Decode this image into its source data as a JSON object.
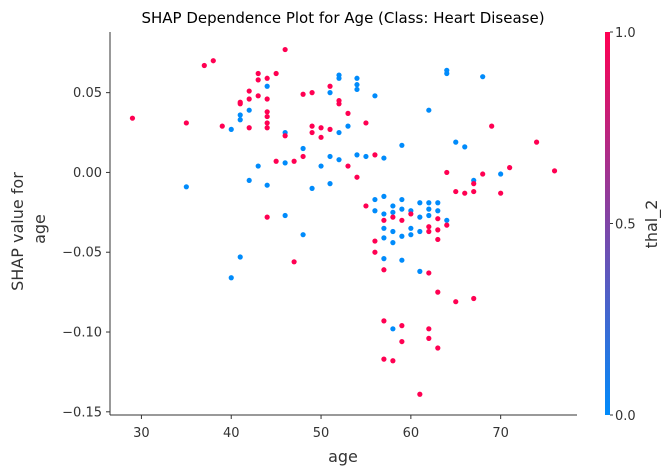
{
  "chart_data": {
    "type": "scatter",
    "title": "SHAP Dependence Plot for Age (Class: Heart Disease)",
    "xlabel": "age",
    "ylabel": [
      "SHAP value for",
      "age"
    ],
    "xlim": [
      26.5,
      78.5
    ],
    "ylim": [
      -0.152,
      0.088
    ],
    "xticks": [
      30,
      40,
      50,
      60,
      70
    ],
    "xtick_labels": [
      "30",
      "40",
      "50",
      "60",
      "70"
    ],
    "yticks": [
      -0.15,
      -0.1,
      -0.05,
      0.0,
      0.05
    ],
    "ytick_labels": [
      "−0.15",
      "−0.10",
      "−0.05",
      "0.00",
      "0.05"
    ],
    "colorbar": {
      "label": "thal_2",
      "ticks": [
        0.0,
        0.5,
        1.0
      ],
      "tick_labels": [
        "0.0",
        "0.5",
        "1.0"
      ],
      "low_color": "#008bfb",
      "high_color": "#ff0052"
    },
    "grid": false,
    "points": [
      {
        "x": 29,
        "y": 0.034,
        "c": 1
      },
      {
        "x": 35,
        "y": 0.031,
        "c": 1
      },
      {
        "x": 35,
        "y": -0.009,
        "c": 0
      },
      {
        "x": 37,
        "y": 0.067,
        "c": 1
      },
      {
        "x": 38,
        "y": 0.07,
        "c": 1
      },
      {
        "x": 39,
        "y": 0.029,
        "c": 1
      },
      {
        "x": 40,
        "y": 0.027,
        "c": 0
      },
      {
        "x": 40,
        "y": -0.066,
        "c": 0
      },
      {
        "x": 41,
        "y": 0.044,
        "c": 1
      },
      {
        "x": 41,
        "y": 0.043,
        "c": 1
      },
      {
        "x": 41,
        "y": 0.036,
        "c": 0
      },
      {
        "x": 41,
        "y": 0.033,
        "c": 0
      },
      {
        "x": 41,
        "y": -0.053,
        "c": 0
      },
      {
        "x": 42,
        "y": 0.051,
        "c": 1
      },
      {
        "x": 42,
        "y": 0.046,
        "c": 1
      },
      {
        "x": 42,
        "y": 0.039,
        "c": 0
      },
      {
        "x": 42,
        "y": 0.028,
        "c": 1
      },
      {
        "x": 42,
        "y": -0.005,
        "c": 0
      },
      {
        "x": 43,
        "y": 0.062,
        "c": 1
      },
      {
        "x": 43,
        "y": 0.058,
        "c": 1
      },
      {
        "x": 43,
        "y": 0.048,
        "c": 1
      },
      {
        "x": 43,
        "y": 0.004,
        "c": 0
      },
      {
        "x": 44,
        "y": 0.059,
        "c": 1
      },
      {
        "x": 44,
        "y": 0.054,
        "c": 0
      },
      {
        "x": 44,
        "y": 0.046,
        "c": 1
      },
      {
        "x": 44,
        "y": 0.038,
        "c": 1
      },
      {
        "x": 44,
        "y": 0.035,
        "c": 1
      },
      {
        "x": 44,
        "y": 0.031,
        "c": 1
      },
      {
        "x": 44,
        "y": 0.028,
        "c": 1
      },
      {
        "x": 44,
        "y": -0.008,
        "c": 0
      },
      {
        "x": 44,
        "y": -0.028,
        "c": 1
      },
      {
        "x": 45,
        "y": 0.062,
        "c": 1
      },
      {
        "x": 45,
        "y": 0.007,
        "c": 1
      },
      {
        "x": 46,
        "y": 0.077,
        "c": 1
      },
      {
        "x": 46,
        "y": 0.025,
        "c": 0
      },
      {
        "x": 46,
        "y": 0.023,
        "c": 1
      },
      {
        "x": 46,
        "y": 0.006,
        "c": 0
      },
      {
        "x": 46,
        "y": -0.027,
        "c": 0
      },
      {
        "x": 47,
        "y": 0.007,
        "c": 1
      },
      {
        "x": 47,
        "y": -0.056,
        "c": 1
      },
      {
        "x": 48,
        "y": 0.049,
        "c": 1
      },
      {
        "x": 48,
        "y": 0.015,
        "c": 0
      },
      {
        "x": 48,
        "y": 0.01,
        "c": 1
      },
      {
        "x": 48,
        "y": -0.039,
        "c": 0
      },
      {
        "x": 49,
        "y": 0.05,
        "c": 1
      },
      {
        "x": 49,
        "y": 0.029,
        "c": 1
      },
      {
        "x": 49,
        "y": 0.025,
        "c": 1
      },
      {
        "x": 49,
        "y": -0.01,
        "c": 0
      },
      {
        "x": 50,
        "y": 0.028,
        "c": 1
      },
      {
        "x": 50,
        "y": 0.022,
        "c": 1
      },
      {
        "x": 50,
        "y": 0.004,
        "c": 0
      },
      {
        "x": 51,
        "y": 0.054,
        "c": 1
      },
      {
        "x": 51,
        "y": 0.05,
        "c": 0
      },
      {
        "x": 51,
        "y": 0.027,
        "c": 1
      },
      {
        "x": 51,
        "y": 0.01,
        "c": 0
      },
      {
        "x": 51,
        "y": -0.007,
        "c": 0
      },
      {
        "x": 52,
        "y": 0.061,
        "c": 0
      },
      {
        "x": 52,
        "y": 0.059,
        "c": 0
      },
      {
        "x": 52,
        "y": 0.045,
        "c": 1
      },
      {
        "x": 52,
        "y": 0.043,
        "c": 1
      },
      {
        "x": 52,
        "y": 0.025,
        "c": 0
      },
      {
        "x": 52,
        "y": 0.008,
        "c": 0
      },
      {
        "x": 53,
        "y": 0.037,
        "c": 1
      },
      {
        "x": 53,
        "y": 0.029,
        "c": 0
      },
      {
        "x": 53,
        "y": 0.004,
        "c": 1
      },
      {
        "x": 54,
        "y": 0.059,
        "c": 0
      },
      {
        "x": 54,
        "y": 0.055,
        "c": 0
      },
      {
        "x": 54,
        "y": 0.052,
        "c": 0
      },
      {
        "x": 54,
        "y": 0.011,
        "c": 0
      },
      {
        "x": 54,
        "y": -0.003,
        "c": 1
      },
      {
        "x": 55,
        "y": 0.031,
        "c": 1
      },
      {
        "x": 55,
        "y": 0.01,
        "c": 0
      },
      {
        "x": 55,
        "y": -0.021,
        "c": 1
      },
      {
        "x": 56,
        "y": 0.048,
        "c": 0
      },
      {
        "x": 56,
        "y": 0.011,
        "c": 1
      },
      {
        "x": 56,
        "y": -0.017,
        "c": 0
      },
      {
        "x": 56,
        "y": -0.024,
        "c": 0
      },
      {
        "x": 56,
        "y": -0.043,
        "c": 1
      },
      {
        "x": 56,
        "y": -0.05,
        "c": 1
      },
      {
        "x": 57,
        "y": 0.009,
        "c": 0
      },
      {
        "x": 57,
        "y": -0.015,
        "c": 0
      },
      {
        "x": 57,
        "y": -0.026,
        "c": 0
      },
      {
        "x": 57,
        "y": -0.03,
        "c": 1
      },
      {
        "x": 57,
        "y": -0.035,
        "c": 0
      },
      {
        "x": 57,
        "y": -0.041,
        "c": 0
      },
      {
        "x": 57,
        "y": -0.054,
        "c": 0
      },
      {
        "x": 57,
        "y": -0.061,
        "c": 1
      },
      {
        "x": 57,
        "y": -0.093,
        "c": 1
      },
      {
        "x": 57,
        "y": -0.117,
        "c": 1
      },
      {
        "x": 58,
        "y": -0.021,
        "c": 0
      },
      {
        "x": 58,
        "y": -0.025,
        "c": 0
      },
      {
        "x": 58,
        "y": -0.028,
        "c": 1
      },
      {
        "x": 58,
        "y": -0.037,
        "c": 0
      },
      {
        "x": 58,
        "y": -0.044,
        "c": 0
      },
      {
        "x": 58,
        "y": -0.098,
        "c": 0
      },
      {
        "x": 58,
        "y": -0.118,
        "c": 1
      },
      {
        "x": 59,
        "y": 0.017,
        "c": 0
      },
      {
        "x": 59,
        "y": -0.017,
        "c": 0
      },
      {
        "x": 59,
        "y": -0.023,
        "c": 0
      },
      {
        "x": 59,
        "y": -0.03,
        "c": 1
      },
      {
        "x": 59,
        "y": -0.04,
        "c": 0
      },
      {
        "x": 59,
        "y": -0.055,
        "c": 0
      },
      {
        "x": 59,
        "y": -0.096,
        "c": 1
      },
      {
        "x": 59,
        "y": -0.106,
        "c": 1
      },
      {
        "x": 60,
        "y": -0.024,
        "c": 0
      },
      {
        "x": 60,
        "y": -0.026,
        "c": 1
      },
      {
        "x": 60,
        "y": -0.035,
        "c": 0
      },
      {
        "x": 60,
        "y": -0.039,
        "c": 0
      },
      {
        "x": 61,
        "y": -0.019,
        "c": 0
      },
      {
        "x": 61,
        "y": -0.028,
        "c": 0
      },
      {
        "x": 61,
        "y": -0.037,
        "c": 0
      },
      {
        "x": 61,
        "y": -0.062,
        "c": 0
      },
      {
        "x": 61,
        "y": -0.139,
        "c": 1
      },
      {
        "x": 62,
        "y": 0.039,
        "c": 0
      },
      {
        "x": 62,
        "y": -0.019,
        "c": 0
      },
      {
        "x": 62,
        "y": -0.023,
        "c": 0
      },
      {
        "x": 62,
        "y": -0.027,
        "c": 0
      },
      {
        "x": 62,
        "y": -0.034,
        "c": 1
      },
      {
        "x": 62,
        "y": -0.037,
        "c": 1
      },
      {
        "x": 62,
        "y": -0.063,
        "c": 1
      },
      {
        "x": 62,
        "y": -0.098,
        "c": 1
      },
      {
        "x": 62,
        "y": -0.104,
        "c": 1
      },
      {
        "x": 63,
        "y": -0.019,
        "c": 0
      },
      {
        "x": 63,
        "y": -0.024,
        "c": 0
      },
      {
        "x": 63,
        "y": -0.029,
        "c": 1
      },
      {
        "x": 63,
        "y": -0.036,
        "c": 1
      },
      {
        "x": 63,
        "y": -0.042,
        "c": 1
      },
      {
        "x": 63,
        "y": -0.075,
        "c": 1
      },
      {
        "x": 63,
        "y": -0.11,
        "c": 1
      },
      {
        "x": 64,
        "y": 0.064,
        "c": 0
      },
      {
        "x": 64,
        "y": 0.062,
        "c": 0
      },
      {
        "x": 64,
        "y": 0.0,
        "c": 1
      },
      {
        "x": 64,
        "y": -0.03,
        "c": 0
      },
      {
        "x": 64,
        "y": -0.033,
        "c": 1
      },
      {
        "x": 65,
        "y": 0.019,
        "c": 0
      },
      {
        "x": 65,
        "y": -0.012,
        "c": 1
      },
      {
        "x": 65,
        "y": -0.081,
        "c": 1
      },
      {
        "x": 66,
        "y": 0.016,
        "c": 0
      },
      {
        "x": 66,
        "y": -0.013,
        "c": 1
      },
      {
        "x": 67,
        "y": -0.005,
        "c": 0
      },
      {
        "x": 67,
        "y": -0.007,
        "c": 1
      },
      {
        "x": 67,
        "y": -0.012,
        "c": 1
      },
      {
        "x": 67,
        "y": -0.079,
        "c": 1
      },
      {
        "x": 68,
        "y": 0.06,
        "c": 0
      },
      {
        "x": 68,
        "y": -0.001,
        "c": 1
      },
      {
        "x": 69,
        "y": 0.029,
        "c": 1
      },
      {
        "x": 70,
        "y": -0.001,
        "c": 0
      },
      {
        "x": 70,
        "y": -0.013,
        "c": 1
      },
      {
        "x": 71,
        "y": 0.003,
        "c": 1
      },
      {
        "x": 74,
        "y": 0.019,
        "c": 1
      },
      {
        "x": 76,
        "y": 0.001,
        "c": 1
      }
    ]
  }
}
